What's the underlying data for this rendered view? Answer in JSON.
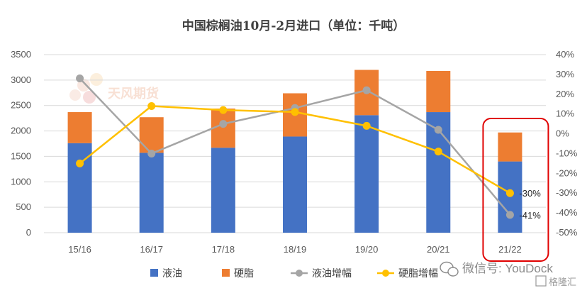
{
  "chart_data": {
    "type": "bar",
    "title": "中国棕榈油10月-2月进口（单位：千吨）",
    "categories": [
      "15/16",
      "16/17",
      "17/18",
      "18/19",
      "19/20",
      "20/21",
      "21/22"
    ],
    "stacked": true,
    "series": [
      {
        "name": "液油",
        "kind": "bar",
        "axis": "left",
        "color": "#4472C4",
        "values": [
          1760,
          1570,
          1670,
          1890,
          2310,
          2370,
          1400
        ]
      },
      {
        "name": "硬脂",
        "kind": "bar",
        "axis": "left",
        "color": "#ED7D31",
        "values": [
          610,
          700,
          770,
          850,
          890,
          810,
          570
        ]
      },
      {
        "name": "液油增幅",
        "kind": "line",
        "axis": "right",
        "color": "#A5A5A5",
        "unit": "%",
        "values": [
          28,
          -10,
          5,
          13,
          22,
          2,
          -41
        ]
      },
      {
        "name": "硬脂增幅",
        "kind": "line",
        "axis": "right",
        "color": "#FFC000",
        "unit": "%",
        "values": [
          -15,
          14,
          12,
          11,
          4,
          -9,
          -30
        ]
      }
    ],
    "y_left": {
      "min": 0,
      "max": 3500,
      "step": 500,
      "ticks": [
        "0",
        "500",
        "1000",
        "1500",
        "2000",
        "2500",
        "3000",
        "3500"
      ]
    },
    "y_right": {
      "min": -50,
      "max": 40,
      "step": 10,
      "ticks": [
        "-50%",
        "-40%",
        "-30%",
        "-20%",
        "-10%",
        "0%",
        "10%",
        "20%",
        "30%",
        "40%"
      ]
    },
    "annotations": [
      {
        "text": "-30%",
        "series": "硬脂增幅",
        "category": "21/22"
      },
      {
        "text": "-41%",
        "series": "液油增幅",
        "category": "21/22"
      }
    ],
    "highlight": {
      "category": "21/22",
      "color": "#E00000"
    },
    "legend": {
      "placement": "bottom"
    },
    "grid": true
  },
  "watermarks": {
    "logo_text": "天风期货",
    "wechat_text": "微信号: YouDock",
    "corner_text": "格隆汇"
  }
}
